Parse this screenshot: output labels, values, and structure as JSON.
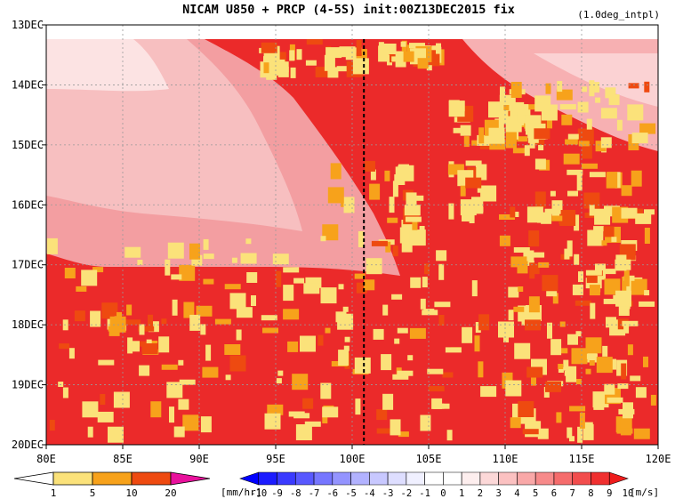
{
  "chart_data": {
    "type": "heatmap",
    "title": "NICAM  U850 + PRCP (4-5S) init:00Z13DEC2015 fix",
    "subtitle": "(1.0deg_intpl)",
    "x_tick_labels": [
      "80E",
      "85E",
      "90E",
      "95E",
      "100E",
      "105E",
      "110E",
      "115E",
      "120E"
    ],
    "x_ticks": [
      80,
      85,
      90,
      95,
      100,
      105,
      110,
      115,
      120
    ],
    "xlim": [
      80,
      120
    ],
    "y_tick_labels": [
      "13DEC",
      "14DEC",
      "15DEC",
      "16DEC",
      "17DEC",
      "18DEC",
      "19DEC",
      "20DEC"
    ],
    "y_ticks": [
      13,
      14,
      15,
      16,
      17,
      18,
      19,
      20
    ],
    "ylim": [
      13,
      20
    ],
    "y_inverted": true,
    "grid": true,
    "reference_line_x": 101,
    "precip_colorbar": {
      "labels": [
        "1",
        "5",
        "10",
        "20"
      ],
      "colors": [
        "#ffffff",
        "#fbe27a",
        "#f7a21b",
        "#ee4a10",
        "#e8119c"
      ],
      "unit": "[mm/hr]"
    },
    "wind_colorbar": {
      "labels": [
        "-10",
        "-9",
        "-8",
        "-7",
        "-6",
        "-5",
        "-4",
        "-3",
        "-2",
        "-1",
        "0",
        "1",
        "2",
        "3",
        "4",
        "5",
        "6",
        "7",
        "8",
        "9",
        "10"
      ],
      "colors": [
        "#0000ff",
        "#1c1cff",
        "#3a3aff",
        "#5858ff",
        "#7676ff",
        "#9494ff",
        "#b2b2ff",
        "#c8c8ff",
        "#dedeff",
        "#f0f0ff",
        "#ffffff",
        "#ffffff",
        "#fdeeee",
        "#fcd8d8",
        "#fbc1c1",
        "#f9a8a8",
        "#f78a8a",
        "#f56c6c",
        "#f24d4d",
        "#f03030",
        "#ee1c1c"
      ],
      "unit": "[m/s]"
    }
  }
}
